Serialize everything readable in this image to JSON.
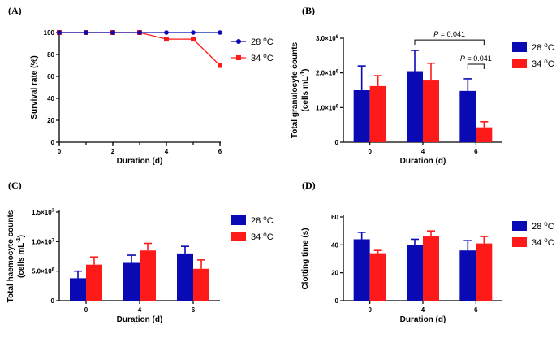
{
  "colors": {
    "s28": "#0a0ab4",
    "s34": "#ff1a1a",
    "axis": "#000000"
  },
  "chart_data": [
    {
      "panel": "(A)",
      "type": "line",
      "xlabel": "Duration (d)",
      "ylabel": "Survival rate (%)",
      "xlim": [
        0,
        6
      ],
      "ylim": [
        0,
        100
      ],
      "xticks": [
        "0",
        "2",
        "4",
        "6"
      ],
      "xtick_values": [
        0,
        2,
        4,
        6
      ],
      "yticks": [
        "0",
        "20",
        "40",
        "60",
        "80",
        "100"
      ],
      "ytick_values": [
        0,
        20,
        40,
        60,
        80,
        100
      ],
      "x": [
        0,
        1,
        2,
        3,
        4,
        5,
        6
      ],
      "legend": "right",
      "series": [
        {
          "name": "28 °C",
          "marker": "circle",
          "color": "#0a0ab4",
          "values": [
            100,
            100,
            100,
            100,
            100,
            100,
            100
          ]
        },
        {
          "name": "34 °C",
          "marker": "square",
          "color": "#ff1a1a",
          "values": [
            100,
            100,
            100,
            100,
            94,
            94,
            70
          ]
        }
      ]
    },
    {
      "panel": "(B)",
      "type": "bar",
      "xlabel": "Duration (d)",
      "ylabel_main": "Total granulocyte counts",
      "ylabel_sub": "(cells mL",
      "ylabel_sup": "-1",
      "ylabel_end": ")",
      "categories": [
        "0",
        "4",
        "6"
      ],
      "ylim": [
        0,
        3000000
      ],
      "yticks": [
        {
          "v": 0,
          "base": "0",
          "sup": ""
        },
        {
          "v": 1000000,
          "base": "1.0×10",
          "sup": "6"
        },
        {
          "v": 2000000,
          "base": "2.0×10",
          "sup": "6"
        },
        {
          "v": 3000000,
          "base": "3.0×10",
          "sup": "6"
        }
      ],
      "legend": "right",
      "series": [
        {
          "name": "28 °C",
          "color": "#0a0ab4",
          "values": [
            1500000,
            2050000,
            1480000
          ],
          "errors": [
            700000,
            600000,
            350000
          ]
        },
        {
          "name": "34 °C",
          "color": "#ff1a1a",
          "values": [
            1620000,
            1780000,
            430000
          ],
          "errors": [
            300000,
            500000,
            160000
          ]
        }
      ],
      "annotations": [
        {
          "italic": "P",
          "text": " = 0.041",
          "from": [
            1,
            0
          ],
          "to": [
            2,
            1
          ],
          "level": 2950000
        },
        {
          "italic": "P",
          "text": " = 0.041",
          "from": [
            2,
            0
          ],
          "to": [
            2,
            1
          ],
          "level": 2250000
        }
      ]
    },
    {
      "panel": "(C)",
      "type": "bar",
      "xlabel": "Duration (d)",
      "ylabel_main": "Total haemocyte counts",
      "ylabel_sub": "(cells mL",
      "ylabel_sup": "-1",
      "ylabel_end": ")",
      "categories": [
        "0",
        "4",
        "6"
      ],
      "ylim": [
        0,
        15000000
      ],
      "yticks": [
        {
          "v": 0,
          "base": "0",
          "sup": ""
        },
        {
          "v": 5000000,
          "base": "5.0×10",
          "sup": "6"
        },
        {
          "v": 10000000,
          "base": "1.0×10",
          "sup": "7"
        },
        {
          "v": 15000000,
          "base": "1.5×10",
          "sup": "7"
        }
      ],
      "legend": "right",
      "series": [
        {
          "name": "28 °C",
          "color": "#0a0ab4",
          "values": [
            3800000,
            6400000,
            8000000
          ],
          "errors": [
            1200000,
            1300000,
            1200000
          ]
        },
        {
          "name": "34 °C",
          "color": "#ff1a1a",
          "values": [
            6100000,
            8500000,
            5400000
          ],
          "errors": [
            1300000,
            1200000,
            1500000
          ]
        }
      ],
      "annotations": []
    },
    {
      "panel": "(D)",
      "type": "bar",
      "xlabel": "Duration (d)",
      "ylabel_main": "Clotting time (s)",
      "ylabel_sub": "",
      "ylabel_sup": "",
      "ylabel_end": "",
      "categories": [
        "0",
        "4",
        "6"
      ],
      "ylim": [
        0,
        60
      ],
      "yticks": [
        {
          "v": 0,
          "base": "0",
          "sup": ""
        },
        {
          "v": 20,
          "base": "20",
          "sup": ""
        },
        {
          "v": 40,
          "base": "40",
          "sup": ""
        },
        {
          "v": 60,
          "base": "60",
          "sup": ""
        }
      ],
      "legend": "right",
      "series": [
        {
          "name": "28 °C",
          "color": "#0a0ab4",
          "values": [
            44,
            40,
            36
          ],
          "errors": [
            5,
            4,
            7
          ]
        },
        {
          "name": "34 °C",
          "color": "#ff1a1a",
          "values": [
            34,
            46,
            41
          ],
          "errors": [
            2,
            4,
            5
          ]
        }
      ],
      "annotations": []
    }
  ]
}
